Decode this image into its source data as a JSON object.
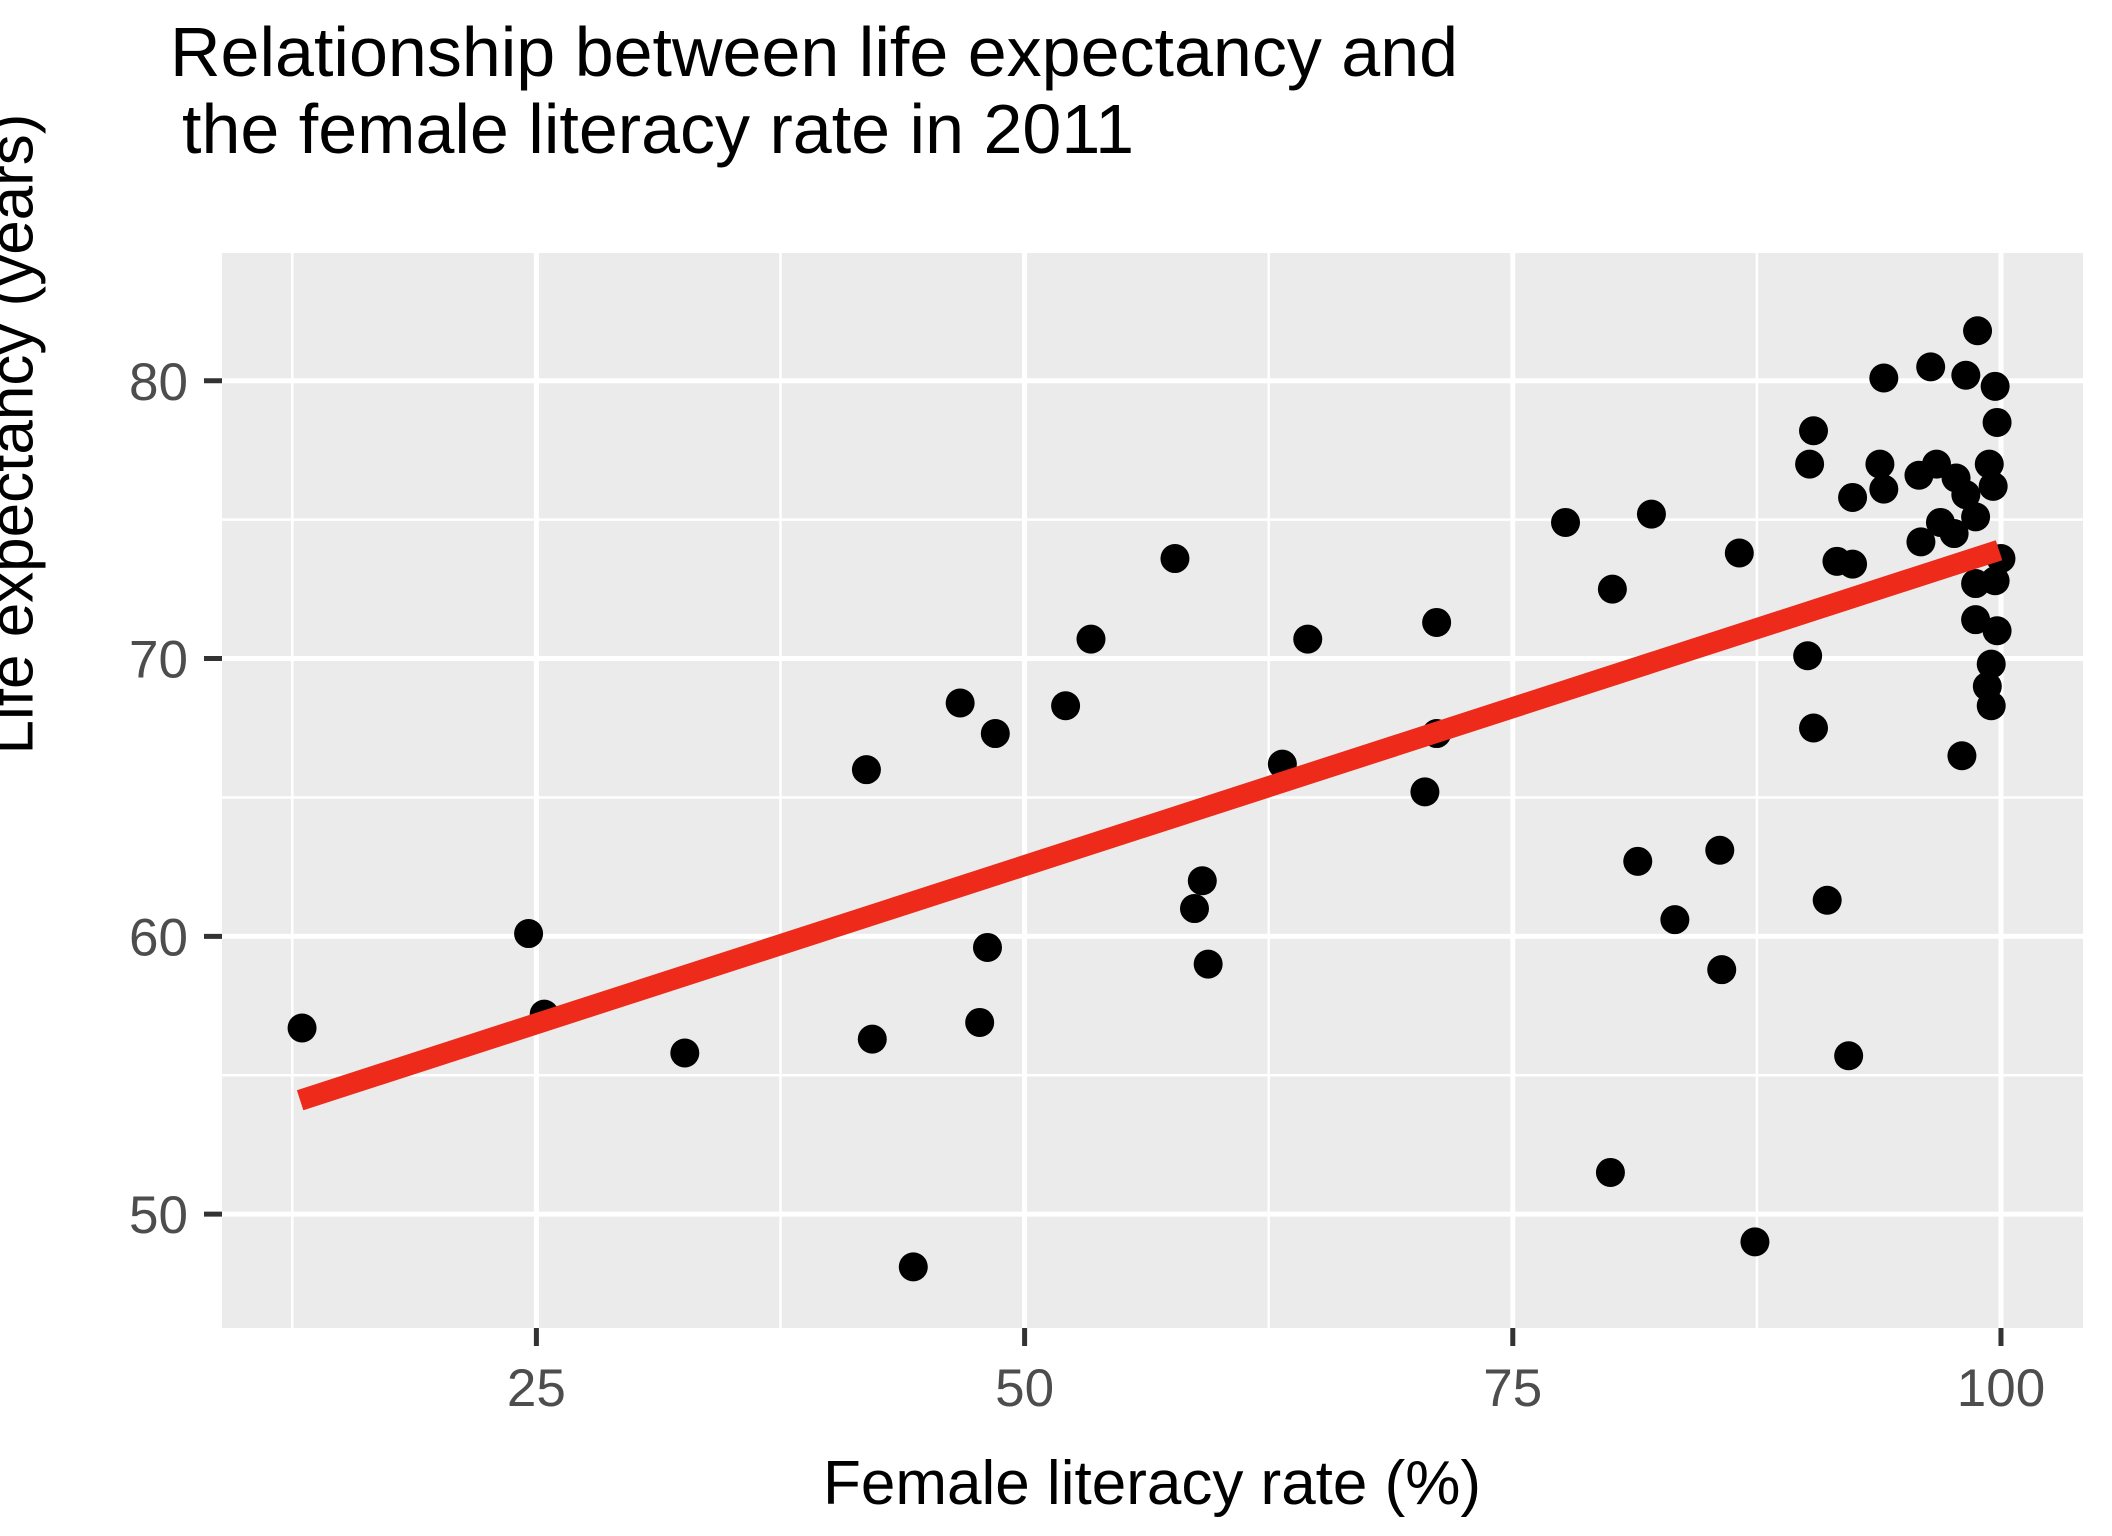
{
  "title": {
    "line1": "Relationship between life expectancy and",
    "line2": "the female literacy rate in 2011"
  },
  "chart_data": {
    "type": "scatter",
    "title": "Relationship between life expectancy and the female literacy rate in 2011",
    "xlabel": "Female literacy rate (%)",
    "ylabel": "Life expectancy (years)",
    "x_tick_labels": [
      "25",
      "50",
      "75",
      "100"
    ],
    "x_ticks": [
      25,
      50,
      75,
      100
    ],
    "y_tick_labels": [
      "50",
      "60",
      "70",
      "80"
    ],
    "y_ticks": [
      50,
      60,
      70,
      80
    ],
    "x_minor_gridlines": [
      12.5,
      37.5,
      62.5,
      87.5
    ],
    "y_minor_gridlines": [
      55,
      65,
      75
    ],
    "xlim": [
      8.9,
      104.2
    ],
    "ylim": [
      45.9,
      84.6
    ],
    "grid": true,
    "legend": "none",
    "panel_bg_color": "#EBEBEB",
    "grid_color": "#FFFFFF",
    "point_color": "#000000",
    "trend_color": "#EE2A1A",
    "tick_label_color": "#4D4D4D",
    "tick_mark_color": "#333333",
    "points": [
      [
        13.0,
        56.7
      ],
      [
        24.6,
        60.1
      ],
      [
        25.4,
        57.2
      ],
      [
        32.6,
        55.8
      ],
      [
        41.9,
        66.0
      ],
      [
        42.2,
        56.3
      ],
      [
        44.3,
        48.1
      ],
      [
        46.7,
        68.4
      ],
      [
        47.7,
        56.9
      ],
      [
        48.1,
        59.6
      ],
      [
        48.5,
        67.3
      ],
      [
        52.1,
        68.3
      ],
      [
        53.4,
        70.7
      ],
      [
        57.7,
        73.6
      ],
      [
        58.7,
        61.0
      ],
      [
        59.1,
        62.0
      ],
      [
        59.4,
        59.0
      ],
      [
        63.2,
        66.2
      ],
      [
        64.5,
        70.7
      ],
      [
        70.5,
        65.2
      ],
      [
        71.1,
        71.3
      ],
      [
        71.1,
        67.3
      ],
      [
        77.7,
        74.9
      ],
      [
        80.0,
        51.5
      ],
      [
        80.1,
        72.5
      ],
      [
        81.4,
        62.7
      ],
      [
        82.1,
        75.2
      ],
      [
        83.3,
        60.6
      ],
      [
        85.6,
        63.1
      ],
      [
        85.7,
        58.8
      ],
      [
        86.6,
        73.8
      ],
      [
        87.4,
        49.0
      ],
      [
        90.1,
        70.1
      ],
      [
        90.2,
        77.0
      ],
      [
        90.4,
        78.2
      ],
      [
        90.4,
        67.5
      ],
      [
        91.1,
        61.3
      ],
      [
        91.6,
        73.5
      ],
      [
        92.2,
        55.7
      ],
      [
        92.4,
        75.8
      ],
      [
        92.4,
        73.4
      ],
      [
        93.8,
        77.0
      ],
      [
        94.0,
        76.1
      ],
      [
        94.0,
        80.1
      ],
      [
        95.8,
        76.6
      ],
      [
        95.9,
        74.2
      ],
      [
        96.4,
        80.5
      ],
      [
        96.7,
        77.0
      ],
      [
        96.9,
        74.9
      ],
      [
        97.6,
        74.5
      ],
      [
        97.7,
        76.5
      ],
      [
        98.0,
        66.5
      ],
      [
        98.2,
        75.9
      ],
      [
        98.2,
        80.2
      ],
      [
        98.7,
        75.1
      ],
      [
        98.7,
        72.7
      ],
      [
        98.7,
        71.4
      ],
      [
        98.8,
        81.8
      ],
      [
        99.3,
        69.0
      ],
      [
        99.4,
        77.0
      ],
      [
        99.5,
        69.8
      ],
      [
        99.5,
        68.3
      ],
      [
        99.6,
        76.2
      ],
      [
        99.7,
        79.8
      ],
      [
        99.7,
        72.8
      ],
      [
        99.8,
        78.5
      ],
      [
        99.8,
        71.0
      ],
      [
        100.0,
        73.6
      ]
    ],
    "trend_line": {
      "x1": 12.9,
      "y1": 54.1,
      "x2": 99.9,
      "y2": 73.9
    }
  }
}
